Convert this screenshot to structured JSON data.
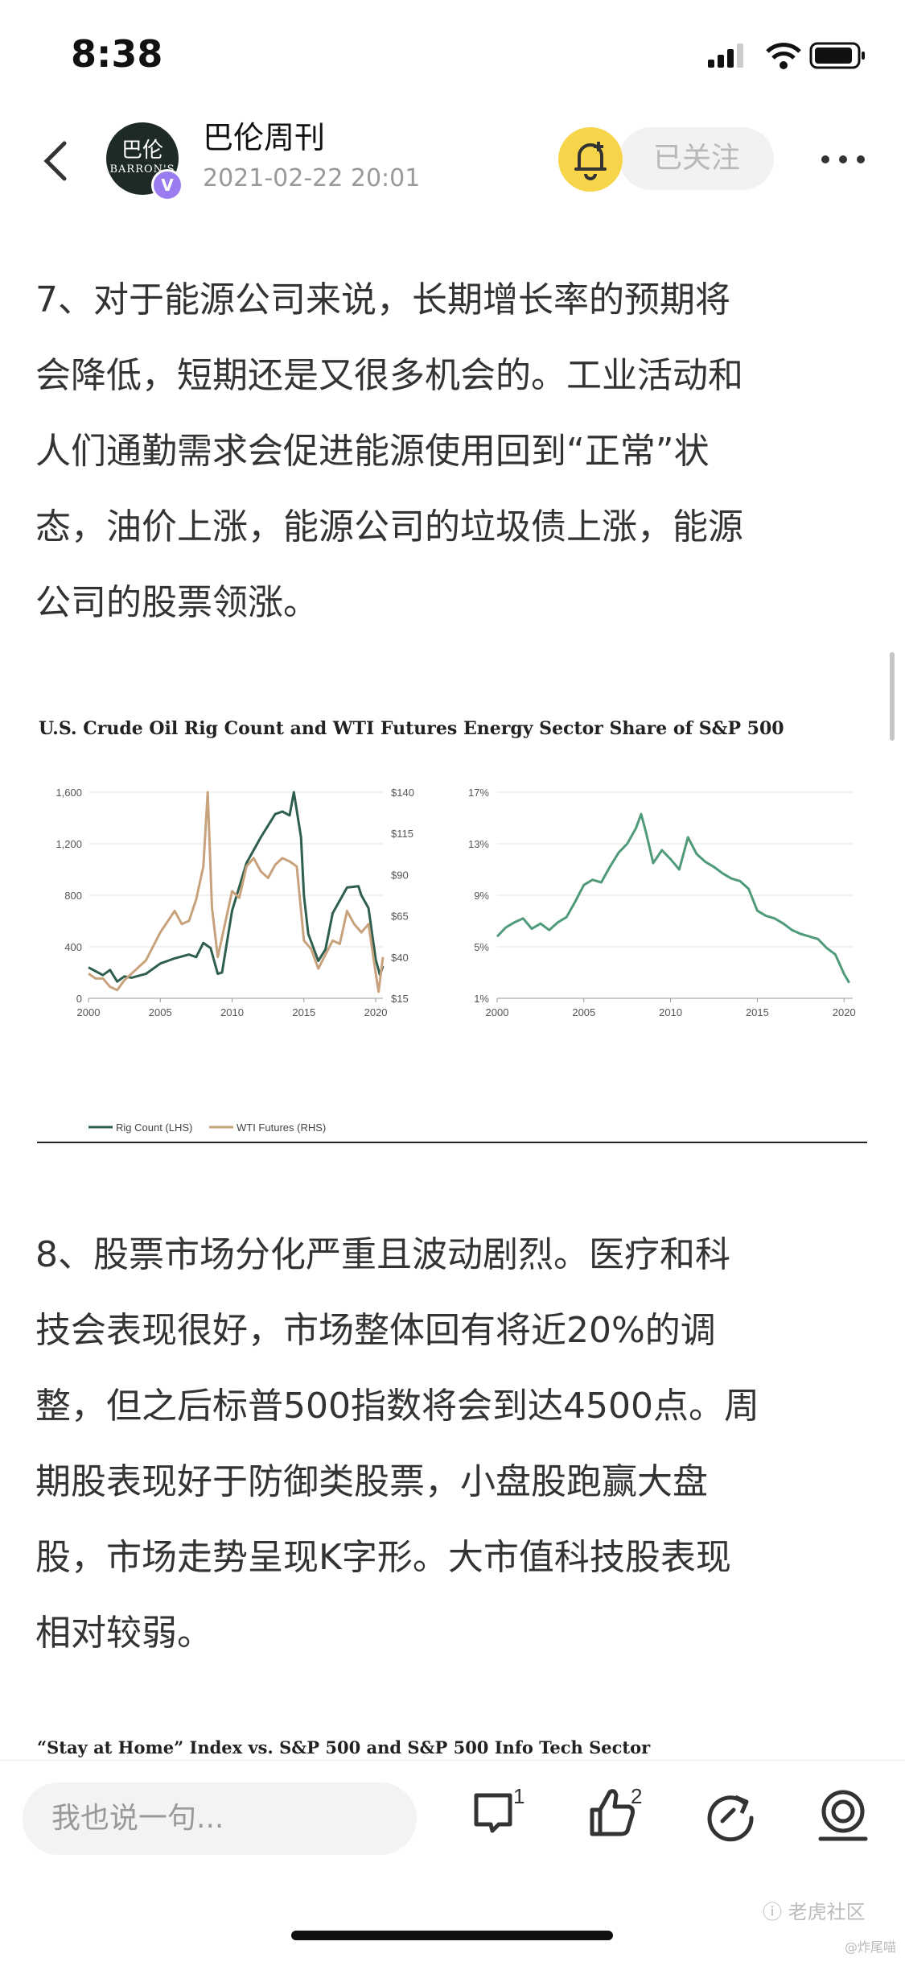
{
  "status": {
    "time": "8:38"
  },
  "header": {
    "author": "巴伦周刊",
    "date": "2021-02-22 20:01",
    "avatar_line1": "巴伦",
    "avatar_line2": "BARRON'S",
    "verified_badge": "V",
    "follow_label": "已关注"
  },
  "article": {
    "para7_lines": [
      "7、对于能源公司来说，长期增长率的预期将",
      "会降低，短期还是又很多机会的。工业活动和",
      "人们通勤需求会促进能源使用回到“正常”状",
      "态，油价上涨，能源公司的垃圾债上涨，能源",
      "公司的股票领涨。"
    ],
    "para8_lines": [
      "8、股票市场分化严重且波动剧烈。医疗和科",
      "技会表现很好，市场整体回有将近20%的调",
      "整，但之后标普500指数将会到达4500点。周",
      "期股表现好于防御类股票，小盘股跑赢大盘",
      "股，市场走势呈现K字形。大市值科技股表现",
      "相对较弱。"
    ],
    "next_chart_title": "“Stay at Home” Index vs. S&P 500 and S&P 500 Info Tech Sector"
  },
  "chart_data": [
    {
      "type": "line",
      "title": "U.S. Crude Oil Rig Count and WTI Futures",
      "x_ticks": [
        "2000",
        "2005",
        "2010",
        "2015",
        "2020"
      ],
      "y_left_ticks": [
        "0",
        "400",
        "800",
        "1,200",
        "1,600"
      ],
      "y_right_ticks": [
        "$15",
        "$40",
        "$65",
        "$90",
        "$115",
        "$140"
      ],
      "ylim_left": [
        0,
        1600
      ],
      "ylim_right": [
        15,
        140
      ],
      "xlim": [
        2000,
        2020.5
      ],
      "series": [
        {
          "name": "Rig Count (LHS)",
          "axis": "left",
          "color": "#2e5e4e",
          "x": [
            2000,
            2000.5,
            2001,
            2001.5,
            2002,
            2002.5,
            2003,
            2004,
            2005,
            2006,
            2007,
            2007.5,
            2008,
            2008.5,
            2009,
            2009.3,
            2010,
            2011,
            2012,
            2013,
            2013.5,
            2014,
            2014.3,
            2014.8,
            2015,
            2015.3,
            2016,
            2016.5,
            2017,
            2018,
            2018.8,
            2019,
            2019.5,
            2020,
            2020.3,
            2020.5
          ],
          "values": [
            240,
            210,
            180,
            220,
            130,
            170,
            160,
            190,
            270,
            310,
            340,
            320,
            430,
            390,
            190,
            200,
            680,
            1050,
            1250,
            1430,
            1450,
            1420,
            1600,
            1250,
            800,
            500,
            290,
            380,
            660,
            860,
            870,
            800,
            700,
            300,
            180,
            250
          ]
        },
        {
          "name": "WTI Futures (RHS)",
          "axis": "right",
          "color": "#c8a27c",
          "x": [
            2000,
            2000.5,
            2001,
            2001.5,
            2002,
            2002.5,
            2003,
            2004,
            2005,
            2006,
            2006.5,
            2007,
            2007.5,
            2008,
            2008.3,
            2008.6,
            2009,
            2010,
            2010.5,
            2011,
            2011.5,
            2012,
            2012.5,
            2013,
            2013.5,
            2014,
            2014.5,
            2015,
            2015.5,
            2016,
            2017,
            2017.5,
            2018,
            2018.5,
            2019,
            2019.5,
            2020,
            2020.2,
            2020.5
          ],
          "values": [
            30,
            27,
            27,
            22,
            20,
            26,
            30,
            38,
            55,
            68,
            60,
            62,
            75,
            95,
            140,
            70,
            40,
            80,
            76,
            95,
            100,
            92,
            88,
            96,
            100,
            98,
            95,
            50,
            45,
            33,
            50,
            48,
            68,
            60,
            55,
            60,
            30,
            19,
            40
          ]
        }
      ]
    },
    {
      "type": "line",
      "title": "Energy Sector Share of S&P 500",
      "x_ticks": [
        "2000",
        "2005",
        "2010",
        "2015",
        "2020"
      ],
      "y_ticks": [
        "1%",
        "5%",
        "9%",
        "13%",
        "17%"
      ],
      "ylim": [
        1,
        17
      ],
      "xlim": [
        2000,
        2020.5
      ],
      "series": [
        {
          "color": "#4f9a78",
          "x": [
            2000,
            2000.5,
            2001,
            2001.5,
            2002,
            2002.5,
            2003,
            2003.5,
            2004,
            2004.5,
            2005,
            2005.5,
            2006,
            2006.5,
            2007,
            2007.5,
            2008,
            2008.3,
            2008.6,
            2009,
            2009.5,
            2010,
            2010.5,
            2011,
            2011.5,
            2012,
            2012.5,
            2013,
            2013.5,
            2014,
            2014.5,
            2015,
            2015.5,
            2016,
            2016.5,
            2017,
            2017.5,
            2018,
            2018.5,
            2019,
            2019.5,
            2020,
            2020.3
          ],
          "values": [
            5.8,
            6.5,
            6.9,
            7.2,
            6.4,
            6.8,
            6.3,
            6.9,
            7.3,
            8.5,
            9.8,
            10.2,
            10.0,
            11.2,
            12.3,
            13.0,
            14.2,
            15.3,
            13.8,
            11.5,
            12.5,
            11.8,
            11.0,
            13.5,
            12.2,
            11.6,
            11.2,
            10.7,
            10.3,
            10.1,
            9.5,
            7.8,
            7.4,
            7.2,
            6.8,
            6.3,
            6.0,
            5.8,
            5.6,
            4.9,
            4.4,
            2.9,
            2.2
          ]
        }
      ]
    }
  ]
}
